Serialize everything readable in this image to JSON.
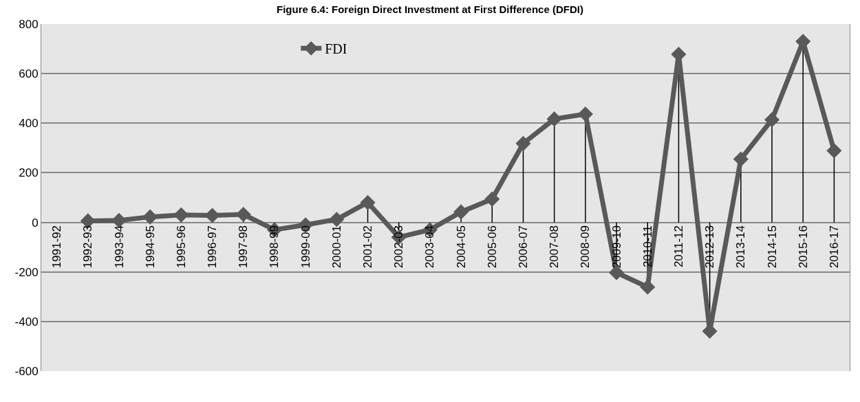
{
  "chart_data": {
    "type": "line",
    "title": "Figure 6.4: Foreign Direct Investment at First Difference (DFDI)",
    "categories": [
      "1991-92",
      "1992-93",
      "1993-94",
      "1994-95",
      "1995-96",
      "1996-97",
      "1997-98",
      "1998-99",
      "1999-00",
      "2000-01",
      "2001-02",
      "2002-03",
      "2003-04",
      "2004-05",
      "2005-06",
      "2006-07",
      "2007-08",
      "2008-09",
      "2009-10",
      "2010-11",
      "2011-12",
      "2012-13",
      "2013-14",
      "2014-15",
      "2015-16",
      "2016-17"
    ],
    "series": [
      {
        "name": "FDI",
        "color": "#595959",
        "values": [
          null,
          6,
          8,
          22,
          30,
          28,
          32,
          -30,
          -10,
          12,
          80,
          -60,
          -30,
          42,
          94,
          318,
          417,
          437,
          -203,
          -261,
          678,
          -439,
          255,
          414,
          730,
          289
        ],
        "errors": [
          null,
          null,
          null,
          [
            0,
            22
          ],
          [
            0,
            30
          ],
          [
            0,
            28
          ],
          [
            0,
            32
          ],
          [
            -30,
            0
          ],
          null,
          null,
          [
            0,
            80
          ],
          [
            -60,
            0
          ],
          [
            -30,
            0
          ],
          [
            0,
            42
          ],
          [
            0,
            94
          ],
          [
            0,
            318
          ],
          [
            0,
            417
          ],
          [
            0,
            437
          ],
          [
            -203,
            0
          ],
          [
            -261,
            0
          ],
          [
            0,
            678
          ],
          [
            -439,
            0
          ],
          [
            0,
            255
          ],
          [
            0,
            414
          ],
          [
            0,
            730
          ],
          [
            0,
            289
          ]
        ]
      }
    ],
    "ylim": [
      -600,
      800
    ],
    "yticks": [
      -600,
      -400,
      -200,
      0,
      200,
      400,
      600,
      800
    ],
    "grid": "y",
    "legend": "top",
    "marker": "diamond",
    "line_style": "solid"
  }
}
